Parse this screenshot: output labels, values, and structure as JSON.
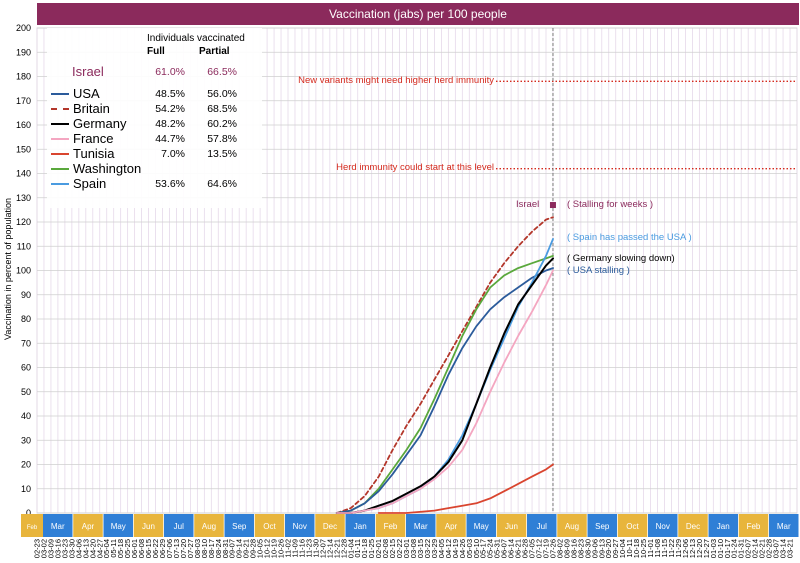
{
  "title": "Vaccination (jabs) per 100 people",
  "ylabel": "Vaccination in percent of population",
  "legend": {
    "header": "Individuals vaccinated",
    "col_full": "Full",
    "col_partial": "Partial",
    "rows": [
      {
        "name": "Israel",
        "full": "61.0%",
        "partial": "66.5%",
        "color": "#8b2a5c",
        "style": "none"
      },
      {
        "name": "USA",
        "full": "48.5%",
        "partial": "56.0%",
        "color": "#2b5b9b",
        "style": "solid"
      },
      {
        "name": "Britain",
        "full": "54.2%",
        "partial": "68.5%",
        "color": "#b3362a",
        "style": "dashed"
      },
      {
        "name": "Germany",
        "full": "48.2%",
        "partial": "60.2%",
        "color": "#000000",
        "style": "solid"
      },
      {
        "name": "France",
        "full": "44.7%",
        "partial": "57.8%",
        "color": "#f4a6c1",
        "style": "solid"
      },
      {
        "name": "Tunisia",
        "full": "7.0%",
        "partial": "13.5%",
        "color": "#d9452f",
        "style": "solid"
      },
      {
        "name": "Washington",
        "full": "",
        "partial": "",
        "color": "#5aa83c",
        "style": "solid"
      },
      {
        "name": "Spain",
        "full": "53.6%",
        "partial": "64.6%",
        "color": "#4a9be0",
        "style": "solid"
      }
    ]
  },
  "annotations": {
    "variants": "New variants might need higher herd immunity",
    "herd": "Herd immunity could start at this level",
    "israel_label": "Israel",
    "stalling": "( Stalling for weeks )",
    "spain": "( Spain has passed the USA )",
    "germany": "( Germany slowing down)",
    "usa": "( USA stalling )"
  },
  "colors": {
    "title_bg": "#8b2a5c",
    "annotation_red": "#d42a1e",
    "month_blue": "#2f7fd6",
    "month_yellow": "#e8b53c"
  },
  "month_labels": [
    "Feb",
    "Mar",
    "Apr",
    "May",
    "Jun",
    "Jul",
    "Aug",
    "Sep",
    "Oct",
    "Nov",
    "Dec",
    "Jan",
    "Feb",
    "Mar",
    "Apr",
    "May",
    "Jun",
    "Jul",
    "Aug",
    "Sep",
    "Oct",
    "Nov",
    "Dec",
    "Jan",
    "Feb",
    "Mar"
  ],
  "date_labels": [
    "02-23",
    "03-02",
    "03-09",
    "03-16",
    "03-23",
    "03-30",
    "04-06",
    "04-13",
    "04-20",
    "04-27",
    "05-04",
    "05-11",
    "05-18",
    "05-25",
    "06-01",
    "06-08",
    "06-15",
    "06-22",
    "06-29",
    "07-06",
    "07-13",
    "07-20",
    "07-27",
    "08-03",
    "08-10",
    "08-17",
    "08-24",
    "08-31",
    "09-07",
    "09-14",
    "09-21",
    "09-28",
    "10-05",
    "10-12",
    "10-19",
    "10-26",
    "11-02",
    "11-09",
    "11-16",
    "11-23",
    "11-30",
    "12-07",
    "12-14",
    "12-21",
    "12-28",
    "01-04",
    "01-11",
    "01-18",
    "01-25",
    "02-01",
    "02-08",
    "02-15",
    "02-22",
    "03-01",
    "03-08",
    "03-15",
    "03-22",
    "03-29",
    "04-05",
    "04-12",
    "04-19",
    "04-26",
    "05-03",
    "05-10",
    "05-17",
    "05-24",
    "05-31",
    "06-07",
    "06-14",
    "06-21",
    "06-28",
    "07-05",
    "07-12",
    "07-19",
    "07-26",
    "08-02",
    "08-09",
    "08-16",
    "08-23",
    "08-30",
    "09-06",
    "09-13",
    "09-20",
    "09-27",
    "10-04",
    "10-11",
    "10-18",
    "10-25",
    "11-01",
    "11-08",
    "11-15",
    "11-22",
    "11-29",
    "12-06",
    "12-13",
    "12-20",
    "12-27",
    "01-03",
    "01-10",
    "01-17",
    "01-24",
    "01-31",
    "02-07",
    "02-14",
    "02-21",
    "02-28",
    "03-07",
    "03-14",
    "03-21"
  ],
  "chart_data": {
    "type": "line",
    "title": "Vaccination (jabs) per 100 people",
    "xlabel": "",
    "ylabel": "Vaccination in percent of population",
    "ylim": [
      0,
      200
    ],
    "yticks": [
      0,
      10,
      20,
      30,
      40,
      50,
      60,
      70,
      80,
      90,
      100,
      110,
      120,
      130,
      140,
      150,
      160,
      170,
      180,
      190,
      200
    ],
    "x_unit": "weeks since 2020-02-23",
    "xlim": [
      0,
      109
    ],
    "current_week": 74,
    "grid": true,
    "legend_position": "top-left",
    "reference_lines": [
      {
        "label": "New variants might need higher herd immunity",
        "y": 178
      },
      {
        "label": "Herd immunity could start at this level",
        "y": 142
      }
    ],
    "series": [
      {
        "name": "Britain",
        "x": [
          43,
          45,
          47,
          49,
          51,
          53,
          55,
          57,
          59,
          61,
          63,
          65,
          67,
          69,
          71,
          73,
          74
        ],
        "y": [
          0,
          2,
          7,
          15,
          26,
          36,
          45,
          55,
          65,
          75,
          85,
          95,
          103,
          110,
          116,
          121,
          122
        ]
      },
      {
        "name": "Washington",
        "x": [
          43,
          45,
          47,
          49,
          51,
          53,
          55,
          57,
          59,
          61,
          63,
          65,
          67,
          69,
          71,
          73,
          74
        ],
        "y": [
          0,
          1,
          4,
          10,
          18,
          26,
          35,
          47,
          60,
          73,
          84,
          93,
          98,
          101,
          103,
          105,
          106
        ]
      },
      {
        "name": "USA",
        "x": [
          43,
          45,
          47,
          49,
          51,
          53,
          55,
          57,
          59,
          61,
          63,
          65,
          67,
          69,
          71,
          73,
          74
        ],
        "y": [
          0,
          1,
          4,
          9,
          16,
          24,
          32,
          44,
          57,
          68,
          77,
          84,
          89,
          93,
          97,
          100,
          101
        ]
      },
      {
        "name": "Spain",
        "x": [
          43,
          45,
          47,
          49,
          51,
          53,
          55,
          57,
          59,
          61,
          63,
          65,
          67,
          69,
          71,
          73,
          74
        ],
        "y": [
          0,
          0,
          1,
          2,
          4,
          7,
          10,
          15,
          22,
          32,
          45,
          59,
          72,
          85,
          95,
          106,
          113
        ]
      },
      {
        "name": "Germany",
        "x": [
          43,
          45,
          47,
          49,
          51,
          53,
          55,
          57,
          59,
          61,
          63,
          65,
          67,
          69,
          71,
          73,
          74
        ],
        "y": [
          0,
          0,
          1,
          3,
          5,
          8,
          11,
          15,
          21,
          30,
          45,
          60,
          74,
          86,
          94,
          102,
          105
        ]
      },
      {
        "name": "France",
        "x": [
          43,
          45,
          47,
          49,
          51,
          53,
          55,
          57,
          59,
          61,
          63,
          65,
          67,
          69,
          71,
          73,
          74
        ],
        "y": [
          0,
          0,
          1,
          2,
          4,
          7,
          10,
          14,
          19,
          26,
          37,
          50,
          62,
          73,
          83,
          94,
          100
        ]
      },
      {
        "name": "Tunisia",
        "x": [
          49,
          53,
          57,
          59,
          61,
          63,
          65,
          67,
          69,
          71,
          73,
          74
        ],
        "y": [
          0,
          0,
          1,
          2,
          3,
          4,
          6,
          9,
          12,
          15,
          18,
          20
        ]
      },
      {
        "name": "Israel",
        "x": [
          74
        ],
        "y": [
          127
        ]
      }
    ]
  }
}
